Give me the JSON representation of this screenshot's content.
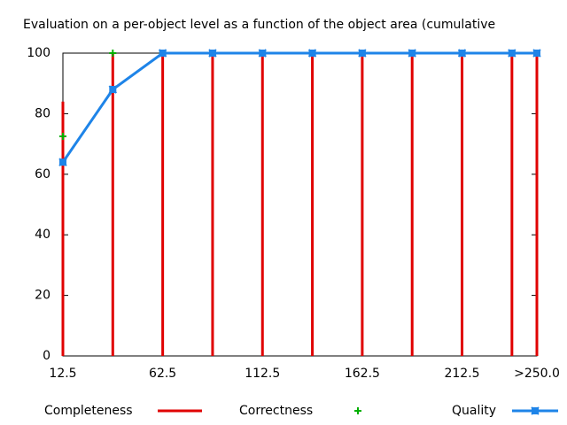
{
  "chart_data": {
    "type": "line",
    "title": "Evaluation on a per-object level as a function of the object area (cumulative",
    "x": [
      12.5,
      37.5,
      62.5,
      87.5,
      112.5,
      137.5,
      162.5,
      187.5,
      212.5,
      237.5,
      250
    ],
    "xlim": [
      12.5,
      250
    ],
    "xticks": [
      12.5,
      62.5,
      112.5,
      162.5,
      212.5,
      {
        "value": 250,
        "label": ">250.0"
      }
    ],
    "ylim": [
      0,
      100
    ],
    "yticks": [
      0,
      20,
      40,
      60,
      80,
      100
    ],
    "legend": "bottom",
    "series": [
      {
        "name": "Completeness",
        "color": "#e00000",
        "style": "impulses",
        "values": [
          84,
          100,
          100,
          100,
          100,
          100,
          100,
          100,
          100,
          100,
          100
        ]
      },
      {
        "name": "Correctness",
        "color": "#00b000",
        "style": "points",
        "values": [
          72.5,
          100,
          100,
          100,
          100,
          100,
          100,
          100,
          100,
          100,
          100
        ]
      },
      {
        "name": "Quality",
        "color": "#1e84e8",
        "style": "linespoints",
        "values": [
          64,
          88,
          100,
          100,
          100,
          100,
          100,
          100,
          100,
          100,
          100
        ]
      }
    ]
  }
}
